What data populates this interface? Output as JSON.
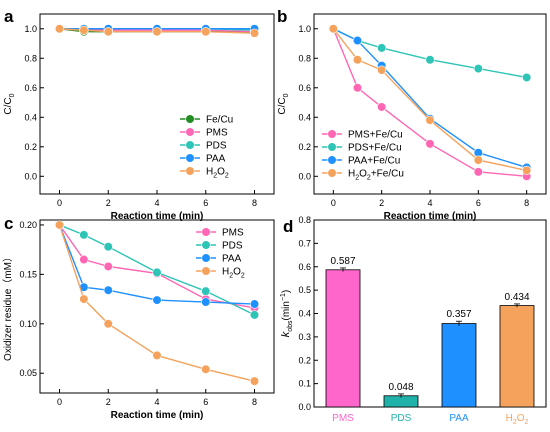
{
  "chart_data": [
    {
      "panel": "a",
      "type": "line",
      "xlabel": "Reaction time (min)",
      "ylabel": "C/C0",
      "ylabel_main": "C/C",
      "ylabel_sub": "0",
      "xlim": [
        -0.8,
        8.8
      ],
      "ylim": [
        -0.12,
        1.1
      ],
      "xticks": [
        "0",
        "2",
        "4",
        "6",
        "8"
      ],
      "yticks": [
        "0.0",
        "0.2",
        "0.4",
        "0.6",
        "0.8",
        "1.0"
      ],
      "legend_position": "lower-right",
      "x": [
        0,
        1,
        2,
        4,
        6,
        8
      ],
      "series": [
        {
          "name": "Fe/Cu",
          "color": "#228b22",
          "values": [
            1.0,
            0.98,
            0.98,
            0.98,
            0.98,
            0.98
          ]
        },
        {
          "name": "PMS",
          "color": "#ff66b3",
          "values": [
            1.0,
            0.99,
            0.99,
            0.99,
            0.99,
            0.98
          ]
        },
        {
          "name": "PDS",
          "color": "#2ec4b6",
          "values": [
            1.0,
            1.0,
            1.0,
            1.0,
            1.0,
            0.99
          ]
        },
        {
          "name": "PAA",
          "color": "#1e90ff",
          "values": [
            1.0,
            1.0,
            1.0,
            1.0,
            1.0,
            1.0
          ]
        },
        {
          "name": "H2O2",
          "name_main": "H",
          "name_sub1": "2",
          "name_mid": "O",
          "name_sub2": "2",
          "color": "#f5a25d",
          "values": [
            1.0,
            0.99,
            0.98,
            0.98,
            0.98,
            0.97
          ]
        }
      ]
    },
    {
      "panel": "b",
      "type": "line",
      "xlabel": "Reaction time (min)",
      "ylabel": "C/C0",
      "ylabel_main": "C/C",
      "ylabel_sub": "0",
      "xlim": [
        -0.8,
        8.8
      ],
      "ylim": [
        -0.12,
        1.1
      ],
      "xticks": [
        "0",
        "2",
        "4",
        "6",
        "8"
      ],
      "yticks": [
        "0.0",
        "0.2",
        "0.4",
        "0.6",
        "0.8",
        "1.0"
      ],
      "legend_position": "lower-left",
      "x": [
        0,
        1,
        2,
        4,
        6,
        8
      ],
      "series": [
        {
          "name": "PMS+Fe/Cu",
          "color": "#ff66b3",
          "values": [
            1.0,
            0.6,
            0.47,
            0.22,
            0.03,
            0.0
          ]
        },
        {
          "name": "PDS+Fe/Cu",
          "color": "#2ec4b6",
          "values": [
            1.0,
            0.92,
            0.87,
            0.79,
            0.73,
            0.67
          ]
        },
        {
          "name": "PAA+Fe/Cu",
          "color": "#1e90ff",
          "values": [
            1.0,
            0.92,
            0.75,
            0.39,
            0.16,
            0.06
          ]
        },
        {
          "name": "H2O2+Fe/Cu",
          "name_main": "H",
          "name_sub1": "2",
          "name_mid": "O",
          "name_sub2": "2",
          "name_tail": "+Fe/Cu",
          "color": "#f5a25d",
          "values": [
            1.0,
            0.79,
            0.72,
            0.38,
            0.11,
            0.04
          ]
        }
      ]
    },
    {
      "panel": "c",
      "type": "line",
      "xlabel": "Reaction time (min)",
      "ylabel": "Oxidizer residue（mM）",
      "xlim": [
        -0.8,
        8.8
      ],
      "ylim": [
        0.03,
        0.205
      ],
      "xticks": [
        "0",
        "2",
        "4",
        "6",
        "8"
      ],
      "yticks": [
        "0.05",
        "0.10",
        "0.15",
        "0.20"
      ],
      "legend_position": "top-right",
      "x": [
        0,
        1,
        2,
        4,
        6,
        8
      ],
      "series": [
        {
          "name": "PMS",
          "color": "#ff66b3",
          "values": [
            0.2,
            0.165,
            0.158,
            0.151,
            0.125,
            0.116
          ]
        },
        {
          "name": "PDS",
          "color": "#2ec4b6",
          "values": [
            0.2,
            0.19,
            0.178,
            0.152,
            0.133,
            0.109
          ]
        },
        {
          "name": "PAA",
          "color": "#1e90ff",
          "values": [
            0.2,
            0.137,
            0.134,
            0.124,
            0.122,
            0.12
          ]
        },
        {
          "name": "H2O2",
          "name_main": "H",
          "name_sub1": "2",
          "name_mid": "O",
          "name_sub2": "2",
          "color": "#f5a25d",
          "values": [
            0.2,
            0.125,
            0.1,
            0.068,
            0.054,
            0.042
          ]
        }
      ]
    },
    {
      "panel": "d",
      "type": "bar",
      "ylabel": "kobs(min−1)",
      "ylabel_k": "k",
      "ylabel_ksub": "obs",
      "ylabel_unit": "(min",
      "ylabel_sup": "−1",
      "ylabel_close": ")",
      "ylim": [
        0,
        0.8
      ],
      "yticks": [
        "0.0",
        "0.1",
        "0.2",
        "0.3",
        "0.4",
        "0.5",
        "0.6",
        "0.7",
        "0.8"
      ],
      "categories": [
        "PMS",
        "PDS",
        "PAA",
        "H2O2"
      ],
      "category_labels": [
        {
          "main": "PMS"
        },
        {
          "main": "PDS"
        },
        {
          "main": "PAA"
        },
        {
          "main": "H",
          "sub1": "2",
          "mid": "O",
          "sub2": "2"
        }
      ],
      "values": [
        0.587,
        0.048,
        0.357,
        0.434
      ],
      "errors": [
        0.008,
        0.008,
        0.01,
        0.007
      ],
      "value_labels": [
        "0.587",
        "0.048",
        "0.357",
        "0.434"
      ],
      "colors": [
        "#ff66cc",
        "#20b2aa",
        "#1e90ff",
        "#f5a25d"
      ],
      "label_colors": [
        "#ff66cc",
        "#20b2aa",
        "#1e90ff",
        "#f5a25d"
      ]
    }
  ]
}
